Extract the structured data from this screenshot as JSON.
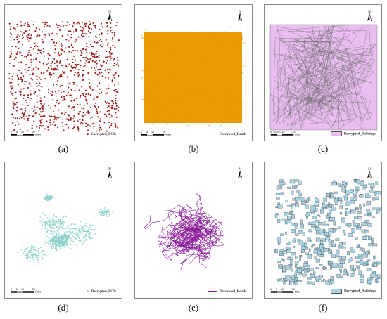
{
  "panels": [
    {
      "id": "a",
      "caption": "(a)",
      "legend": "Encrypted_POIs",
      "symbol": "dot",
      "color": "#9b1b1b"
    },
    {
      "id": "b",
      "caption": "(b)",
      "legend": "Encrypted_Roads",
      "symbol": "line",
      "color": "#e89a00"
    },
    {
      "id": "c",
      "caption": "(c)",
      "legend": "Encrypted_Buildings",
      "symbol": "box",
      "color": "#e9bdf0"
    },
    {
      "id": "d",
      "caption": "(d)",
      "legend": "Decrypted_POIs",
      "symbol": "dot",
      "color": "#8ecfc8"
    },
    {
      "id": "e",
      "caption": "(e)",
      "legend": "Decrypted_Roads",
      "symbol": "line",
      "color": "#8a1a9a"
    },
    {
      "id": "f",
      "caption": "(f)",
      "legend": "Decrypted_Buildings",
      "symbol": "box",
      "color": "#a9d4e6"
    }
  ],
  "scale": {
    "labels_a": [
      "0",
      "5",
      "10",
      "20"
    ],
    "labels_c": [
      "0",
      "0.075",
      "0.15",
      "0.3"
    ],
    "unit": "Miles"
  },
  "north_label": "N"
}
